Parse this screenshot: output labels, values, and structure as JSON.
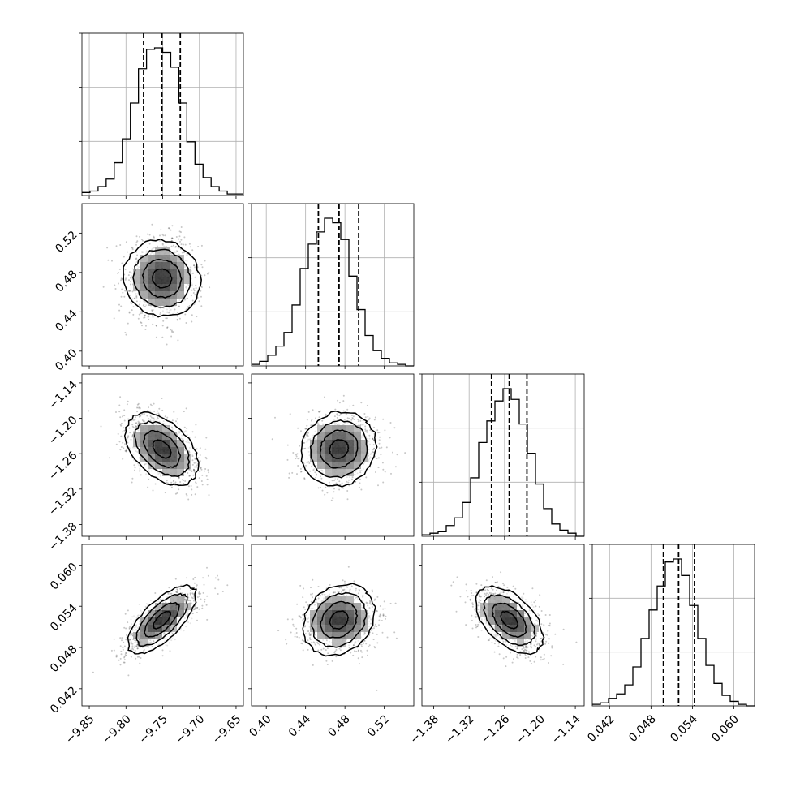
{
  "chart_data": {
    "type": "corner",
    "parameters": [
      {
        "id": "p1",
        "range": [
          -9.86,
          -9.64
        ],
        "ticks": [
          -9.85,
          -9.8,
          -9.75,
          -9.7,
          -9.65
        ],
        "tick_labels": [
          "−9.85",
          "−9.80",
          "−9.75",
          "−9.70",
          "−9.65"
        ],
        "quantiles": [
          -9.776,
          -9.751,
          -9.726
        ]
      },
      {
        "id": "p2",
        "range": [
          0.385,
          0.55
        ],
        "ticks": [
          0.4,
          0.44,
          0.48,
          0.52
        ],
        "tick_labels": [
          "0.40",
          "0.44",
          "0.48",
          "0.52"
        ],
        "quantiles": [
          0.453,
          0.474,
          0.494
        ]
      },
      {
        "id": "p3",
        "range": [
          -1.4,
          -1.125
        ],
        "ticks": [
          -1.38,
          -1.32,
          -1.26,
          -1.2,
          -1.14
        ],
        "tick_labels": [
          "−1.38",
          "−1.32",
          "−1.26",
          "−1.20",
          "−1.14"
        ],
        "quantiles": [
          -1.282,
          -1.252,
          -1.222
        ]
      },
      {
        "id": "p4",
        "range": [
          0.0395,
          0.063
        ],
        "ticks": [
          0.042,
          0.048,
          0.054,
          0.06
        ],
        "tick_labels": [
          "0.042",
          "0.048",
          "0.054",
          "0.060"
        ],
        "quantiles": [
          0.0498,
          0.052,
          0.0543
        ]
      }
    ],
    "histograms": [
      {
        "param": "p1",
        "bins": 20,
        "counts": [
          2,
          3,
          6,
          11,
          22,
          38,
          62,
          85,
          98,
          99,
          96,
          86,
          62,
          36,
          21,
          12,
          6,
          3,
          1,
          1
        ]
      },
      {
        "param": "p2",
        "bins": 20,
        "counts": [
          1,
          3,
          7,
          13,
          22,
          40,
          64,
          80,
          88,
          97,
          94,
          83,
          59,
          37,
          20,
          10,
          5,
          2,
          1,
          0
        ]
      },
      {
        "param": "p3",
        "bins": 20,
        "counts": [
          1,
          2,
          3,
          7,
          12,
          22,
          38,
          61,
          75,
          88,
          96,
          89,
          73,
          54,
          34,
          18,
          8,
          4,
          2,
          0
        ]
      },
      {
        "param": "p4",
        "bins": 20,
        "counts": [
          1,
          2,
          5,
          8,
          14,
          26,
          45,
          64,
          80,
          96,
          98,
          87,
          67,
          45,
          27,
          15,
          7,
          3,
          1,
          0
        ]
      }
    ],
    "pairs": [
      {
        "x": "p1",
        "y": "p2",
        "x_mean": -9.751,
        "y_mean": 0.474,
        "x_sd": 0.025,
        "y_sd": 0.02,
        "rho": 0.0
      },
      {
        "x": "p1",
        "y": "p3",
        "x_mean": -9.751,
        "y_mean": -1.252,
        "x_sd": 0.025,
        "y_sd": 0.03,
        "rho": -0.45
      },
      {
        "x": "p2",
        "y": "p3",
        "x_mean": 0.474,
        "y_mean": -1.252,
        "x_sd": 0.02,
        "y_sd": 0.03,
        "rho": 0.0
      },
      {
        "x": "p1",
        "y": "p4",
        "x_mean": -9.751,
        "y_mean": 0.052,
        "x_sd": 0.025,
        "y_sd": 0.0023,
        "rho": 0.7
      },
      {
        "x": "p2",
        "y": "p4",
        "x_mean": 0.474,
        "y_mean": 0.052,
        "x_sd": 0.02,
        "y_sd": 0.0023,
        "rho": 0.0
      },
      {
        "x": "p3",
        "y": "p4",
        "x_mean": -1.252,
        "y_mean": 0.052,
        "x_sd": 0.03,
        "y_sd": 0.0023,
        "rho": -0.5
      }
    ],
    "contour_levels_sigma": [
      0.5,
      1.0,
      1.5,
      2.0
    ],
    "grid": true,
    "colors": {
      "ink": "#000000",
      "grid": "#b0b0b0",
      "density_max": "#000000",
      "density_min": "#ffffff",
      "scatter": "#7f7f7f"
    }
  }
}
